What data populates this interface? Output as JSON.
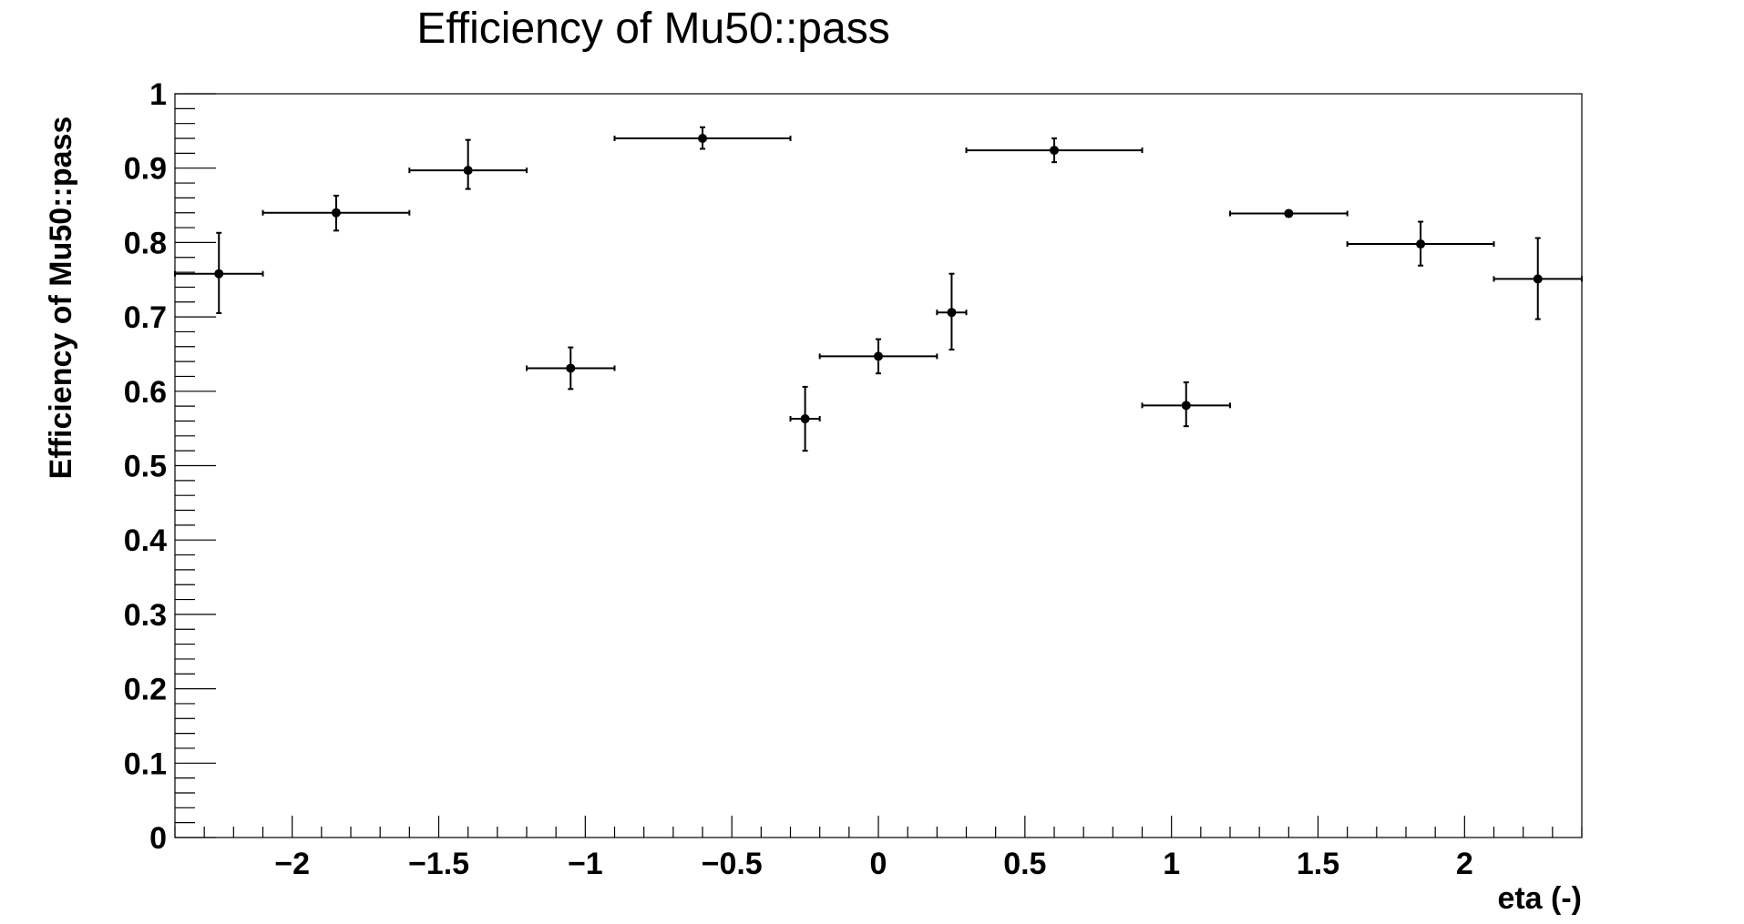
{
  "chart_data": {
    "type": "scatter",
    "title": "Efficiency of Mu50::pass",
    "xlabel": "eta (-)",
    "ylabel": "Efficiency of Mu50::pass",
    "xlim": [
      -2.4,
      2.4
    ],
    "ylim": [
      0,
      1
    ],
    "x_ticks": [
      -2,
      -1.5,
      -1,
      -0.5,
      0,
      0.5,
      1,
      1.5,
      2
    ],
    "x_tick_labels": [
      "−2",
      "−1.5",
      "−1",
      "−0.5",
      "0",
      "0.5",
      "1",
      "1.5",
      "2"
    ],
    "y_ticks": [
      0,
      0.1,
      0.2,
      0.3,
      0.4,
      0.5,
      0.6,
      0.7,
      0.8,
      0.9,
      1
    ],
    "y_tick_labels": [
      "0",
      "0.1",
      "0.2",
      "0.3",
      "0.4",
      "0.5",
      "0.6",
      "0.7",
      "0.8",
      "0.9",
      "1"
    ],
    "grid": false,
    "points": [
      {
        "x": -2.25,
        "xlo": -2.4,
        "xhi": -2.1,
        "y": 0.758,
        "ylo": 0.705,
        "yhi": 0.813
      },
      {
        "x": -1.85,
        "xlo": -2.1,
        "xhi": -1.6,
        "y": 0.84,
        "ylo": 0.816,
        "yhi": 0.863
      },
      {
        "x": -1.4,
        "xlo": -1.6,
        "xhi": -1.2,
        "y": 0.897,
        "ylo": 0.872,
        "yhi": 0.938
      },
      {
        "x": -1.05,
        "xlo": -1.2,
        "xhi": -0.9,
        "y": 0.631,
        "ylo": 0.603,
        "yhi": 0.659
      },
      {
        "x": -0.6,
        "xlo": -0.9,
        "xhi": -0.3,
        "y": 0.94,
        "ylo": 0.926,
        "yhi": 0.955
      },
      {
        "x": -0.25,
        "xlo": -0.3,
        "xhi": -0.2,
        "y": 0.563,
        "ylo": 0.52,
        "yhi": 0.606
      },
      {
        "x": 0.0,
        "xlo": -0.2,
        "xhi": 0.2,
        "y": 0.647,
        "ylo": 0.624,
        "yhi": 0.67
      },
      {
        "x": 0.25,
        "xlo": 0.2,
        "xhi": 0.3,
        "y": 0.706,
        "ylo": 0.656,
        "yhi": 0.758
      },
      {
        "x": 0.6,
        "xlo": 0.3,
        "xhi": 0.9,
        "y": 0.924,
        "ylo": 0.908,
        "yhi": 0.94
      },
      {
        "x": 1.05,
        "xlo": 0.9,
        "xhi": 1.2,
        "y": 0.581,
        "ylo": 0.553,
        "yhi": 0.612
      },
      {
        "x": 1.4,
        "xlo": 1.2,
        "xhi": 1.6,
        "y": 0.839,
        "ylo": 0.835,
        "yhi": 0.843
      },
      {
        "x": 1.85,
        "xlo": 1.6,
        "xhi": 2.1,
        "y": 0.798,
        "ylo": 0.769,
        "yhi": 0.828
      },
      {
        "x": 2.25,
        "xlo": 2.1,
        "xhi": 2.4,
        "y": 0.751,
        "ylo": 0.697,
        "yhi": 0.806
      }
    ]
  }
}
